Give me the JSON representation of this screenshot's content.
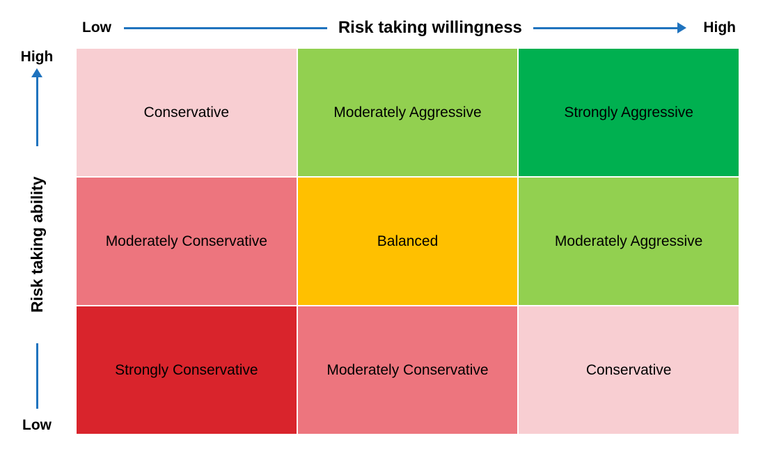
{
  "colors": {
    "axis_arrow": "#1F73BE",
    "cell_text": "#000000"
  },
  "x_axis": {
    "title": "Risk taking willingness",
    "label_low": "Low",
    "label_high": "High"
  },
  "y_axis": {
    "title": "Risk taking ability",
    "label_low": "Low",
    "label_high": "High"
  },
  "matrix": {
    "rows": [
      {
        "cells": [
          {
            "label": "Conservative",
            "bg": "#F8CED2"
          },
          {
            "label": "Moderately Aggressive",
            "bg": "#92D050"
          },
          {
            "label": "Strongly Aggressive",
            "bg": "#00B050"
          }
        ]
      },
      {
        "cells": [
          {
            "label": "Moderately Conservative",
            "bg": "#ED757E"
          },
          {
            "label": "Balanced",
            "bg": "#FFC000"
          },
          {
            "label": "Moderately Aggressive",
            "bg": "#92D050"
          }
        ]
      },
      {
        "cells": [
          {
            "label": "Strongly Conservative",
            "bg": "#D9242C"
          },
          {
            "label": "Moderately Conservative",
            "bg": "#ED757E"
          },
          {
            "label": "Conservative",
            "bg": "#F8CED2"
          }
        ]
      }
    ]
  }
}
